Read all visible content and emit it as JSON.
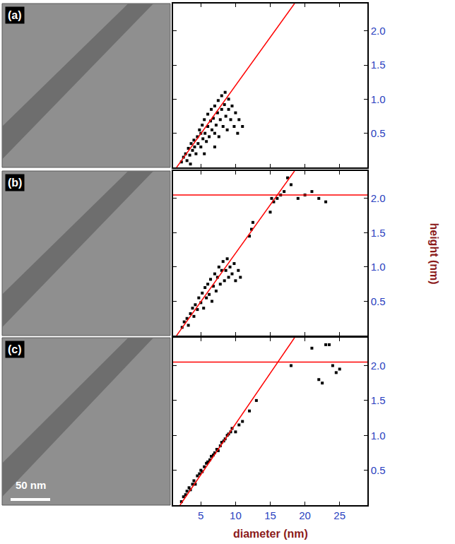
{
  "chart_data": [
    {
      "type": "scatter",
      "title": "(a)",
      "xlim": [
        1,
        29
      ],
      "ylim": [
        0,
        2.4
      ],
      "xticks": [
        5,
        10,
        15,
        20,
        25
      ],
      "yticks": [
        0.5,
        {
          "value": 1,
          "label": "1.0"
        },
        1.5,
        {
          "value": 2,
          "label": "2.0"
        }
      ],
      "tick_labels": "y",
      "series": [
        {
          "type": "scatter",
          "color": "#000000",
          "marker": "square",
          "x": [
            2.2,
            2.5,
            2.8,
            3,
            3.2,
            3.4,
            3.6,
            3.8,
            4,
            4.1,
            4.3,
            4.5,
            4.6,
            4.8,
            5,
            5,
            5.2,
            5.3,
            5.5,
            5.6,
            5.8,
            6,
            6,
            6.2,
            6.4,
            6.5,
            6.6,
            6.8,
            7,
            7,
            7.2,
            7.4,
            7.5,
            7.6,
            7.8,
            8,
            8,
            8.2,
            8.4,
            8.5,
            8.6,
            8.8,
            9,
            9,
            9.3,
            9.5,
            9.8,
            10,
            10.3,
            10.5,
            11,
            3.5,
            5.5,
            7
          ],
          "values": [
            0.08,
            0.15,
            0.2,
            0.1,
            0.28,
            0.18,
            0.35,
            0.25,
            0.4,
            0.3,
            0.2,
            0.45,
            0.35,
            0.55,
            0.3,
            0.5,
            0.62,
            0.42,
            0.7,
            0.5,
            0.38,
            0.6,
            0.78,
            0.45,
            0.68,
            0.85,
            0.55,
            0.72,
            0.9,
            0.5,
            0.62,
            0.8,
            0.98,
            0.45,
            0.7,
            0.85,
            1.05,
            0.6,
            0.92,
            1.1,
            0.75,
            0.55,
            0.85,
            1.0,
            0.7,
            0.9,
            0.6,
            0.8,
            0.5,
            0.7,
            0.6,
            0.05,
            0.2,
            0.3
          ]
        },
        {
          "type": "line",
          "color": "#ff0000",
          "x": [
            1.5,
            18.5
          ],
          "values": [
            0,
            2.4
          ]
        }
      ]
    },
    {
      "type": "scatter",
      "title": "(b)",
      "y_label": "height (nm)",
      "xlim": [
        1,
        29
      ],
      "ylim": [
        0,
        2.4
      ],
      "xticks": [
        5,
        10,
        15,
        20,
        25
      ],
      "yticks": [
        0.5,
        {
          "value": 1,
          "label": "1.0"
        },
        1.5,
        {
          "value": 2,
          "label": "2.0"
        }
      ],
      "tick_labels": "y",
      "series": [
        {
          "type": "scatter",
          "color": "#000000",
          "marker": "square",
          "x": [
            2.3,
            2.6,
            3,
            3.2,
            3.5,
            3.8,
            4,
            4.2,
            4.5,
            4.7,
            5,
            5.2,
            5.4,
            5.6,
            5.8,
            6,
            6.2,
            6.4,
            6.6,
            6.8,
            7,
            7.2,
            7.4,
            7.6,
            7.8,
            8,
            8.2,
            8.4,
            8.6,
            8.8,
            9,
            9.2,
            9.5,
            9.8,
            10,
            10.4,
            10.7,
            12,
            12.3,
            12.5,
            15,
            15.2,
            15.5,
            16,
            16.5,
            17,
            17.5,
            18,
            19,
            20,
            21,
            22,
            23
          ],
          "values": [
            0.12,
            0.2,
            0.25,
            0.15,
            0.32,
            0.4,
            0.28,
            0.45,
            0.38,
            0.55,
            0.48,
            0.62,
            0.4,
            0.7,
            0.55,
            0.75,
            0.6,
            0.82,
            0.5,
            0.72,
            0.9,
            0.65,
            0.85,
            1.0,
            0.75,
            0.95,
            1.08,
            0.8,
            0.95,
            1.12,
            0.85,
            1.0,
            0.9,
            1.05,
            0.8,
            0.95,
            0.85,
            1.45,
            1.55,
            1.65,
            1.8,
            2.0,
            1.95,
            2.0,
            2.05,
            2.1,
            2.3,
            2.2,
            2.0,
            2.05,
            2.1,
            2.0,
            1.95
          ]
        },
        {
          "type": "line",
          "color": "#ff0000",
          "x": [
            1.5,
            18.5
          ],
          "values": [
            0,
            2.4
          ]
        },
        {
          "type": "line",
          "color": "#ff0000",
          "x": [
            1,
            29
          ],
          "values": [
            2.05,
            2.05
          ]
        }
      ]
    },
    {
      "type": "scatter",
      "title": "(c)",
      "x_label": "diameter (nm)",
      "annotations": [
        "50 nm"
      ],
      "xlim": [
        1,
        29
      ],
      "ylim": [
        0,
        2.4
      ],
      "xticks": [
        5,
        10,
        15,
        20,
        25
      ],
      "yticks": [
        0.5,
        {
          "value": 1,
          "label": "1.0"
        },
        1.5,
        {
          "value": 2,
          "label": "2.0"
        }
      ],
      "series": [
        {
          "type": "scatter",
          "color": "#000000",
          "marker": "square",
          "x": [
            2.2,
            2.5,
            2.8,
            3,
            3.3,
            3.5,
            3.8,
            4,
            4.2,
            4.5,
            4.8,
            5,
            5.2,
            5.5,
            5.8,
            6,
            6.3,
            6.5,
            6.8,
            7,
            7.3,
            7.5,
            7.8,
            8,
            8.3,
            8.5,
            8.8,
            9,
            9.3,
            9.5,
            10,
            10.5,
            11,
            12,
            13,
            18,
            21,
            22,
            22.5,
            23,
            23.5,
            24,
            24.5,
            25
          ],
          "values": [
            0.05,
            0.12,
            0.15,
            0.2,
            0.25,
            0.22,
            0.3,
            0.35,
            0.3,
            0.42,
            0.45,
            0.5,
            0.48,
            0.55,
            0.6,
            0.62,
            0.65,
            0.7,
            0.72,
            0.75,
            0.8,
            0.78,
            0.85,
            0.9,
            0.92,
            0.95,
            1.0,
            1.02,
            1.05,
            1.1,
            1.05,
            1.15,
            1.2,
            1.35,
            1.5,
            2.0,
            2.25,
            1.8,
            1.75,
            2.3,
            2.3,
            2.0,
            1.9,
            1.95
          ]
        },
        {
          "type": "line",
          "color": "#ff0000",
          "x": [
            2,
            18.5
          ],
          "values": [
            0,
            2.4
          ]
        },
        {
          "type": "line",
          "color": "#ff0000",
          "x": [
            1,
            29
          ],
          "values": [
            2.05,
            2.05
          ]
        }
      ]
    }
  ]
}
